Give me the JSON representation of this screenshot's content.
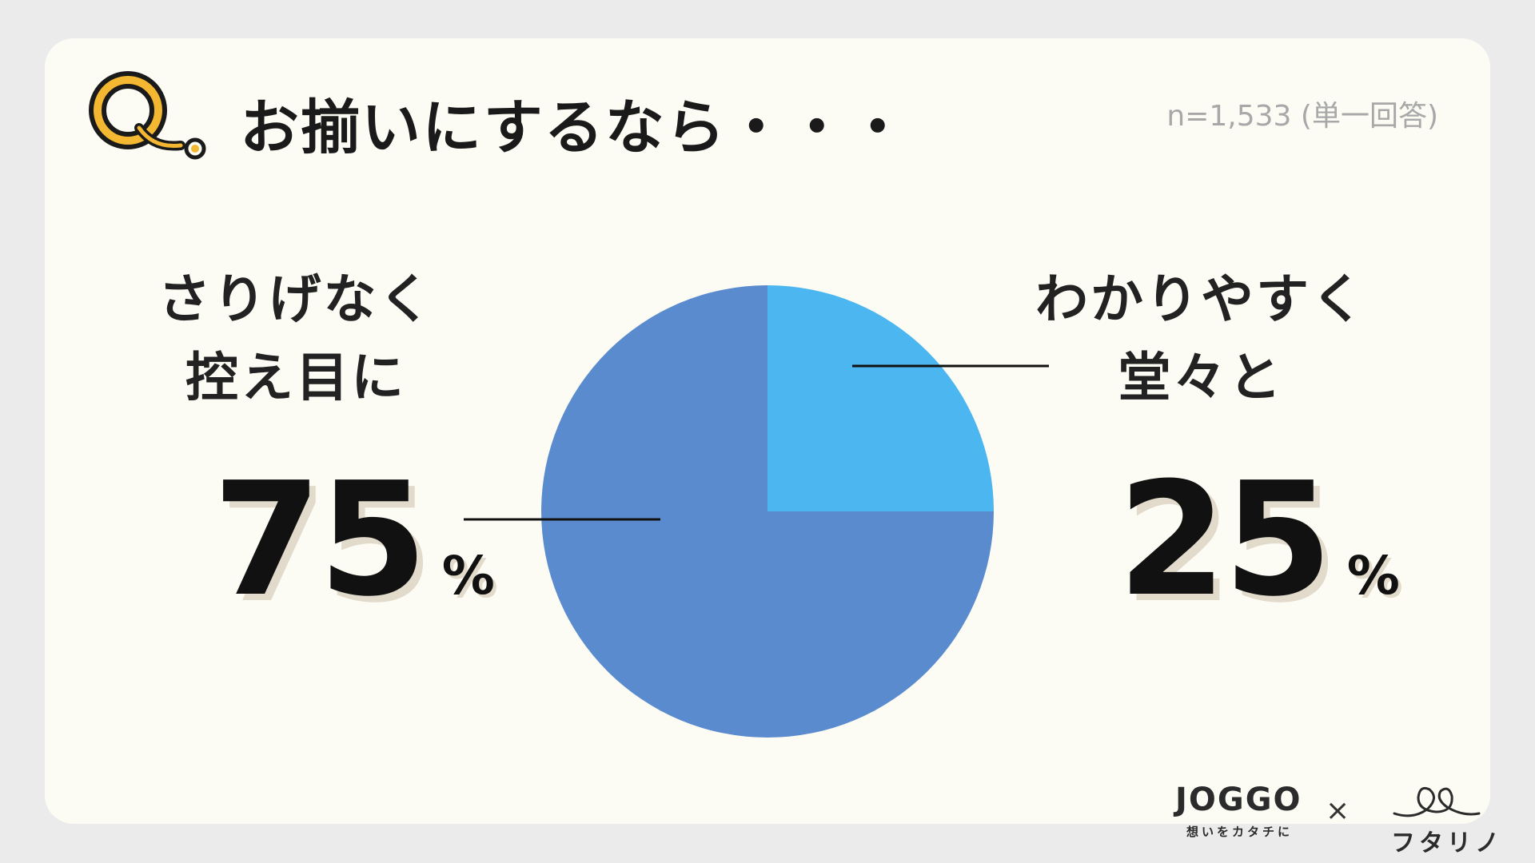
{
  "header": {
    "title": "お揃いにするなら・・・",
    "sample_note": "n=1,533 (単一回答)"
  },
  "chart_data": {
    "type": "pie",
    "title": "お揃いにするなら・・・",
    "slices": [
      {
        "label": "さりげなく\n控え目に",
        "value": 75,
        "display": "75",
        "unit": "%",
        "color": "#5a8bcf"
      },
      {
        "label": "わかりやすく\n堂々と",
        "value": 25,
        "display": "25",
        "unit": "%",
        "color": "#4bb6f0"
      }
    ]
  },
  "colors": {
    "background": "#ebebeb",
    "card": "#fcfcf5",
    "accent_yellow": "#f4b731",
    "text": "#1a1a1a",
    "shadow": "#e2dacb"
  },
  "footer": {
    "brand1": "JOGGO",
    "brand1_tagline": "想いをカタチに",
    "separator": "×",
    "brand2": "フタリノ"
  },
  "icons": [
    "q-badge-icon",
    "futarino-heart-icon"
  ]
}
